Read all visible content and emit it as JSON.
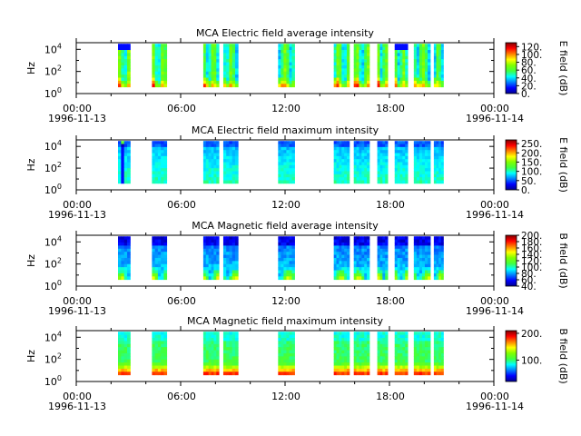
{
  "chart_data": [
    {
      "type": "heatmap",
      "title": "MCA  Electric field average intensity",
      "ylabel": "Hz",
      "yticks": [
        {
          "base": "10",
          "exp": "0"
        },
        {
          "base": "10",
          "exp": "2"
        },
        {
          "base": "10",
          "exp": "4"
        }
      ],
      "ylim_log10": [
        0,
        4.6
      ],
      "colorbar": {
        "label": "E field (dB)",
        "range": [
          0,
          130
        ],
        "ticks": [
          "0.",
          "20.",
          "40.",
          "60.",
          "80.",
          "100.",
          "120."
        ],
        "tick_values": [
          0,
          20,
          40,
          60,
          80,
          100,
          120
        ]
      },
      "style": "eavg"
    },
    {
      "type": "heatmap",
      "title": "MCA  Electric field maximum intensity",
      "ylabel": "Hz",
      "yticks": [
        {
          "base": "10",
          "exp": "0"
        },
        {
          "base": "10",
          "exp": "2"
        },
        {
          "base": "10",
          "exp": "4"
        }
      ],
      "ylim_log10": [
        0,
        4.6
      ],
      "colorbar": {
        "label": "E field (dB)",
        "range": [
          0,
          270
        ],
        "ticks": [
          "0.",
          "50.",
          "100.",
          "150.",
          "200.",
          "250."
        ],
        "tick_values": [
          0,
          50,
          100,
          150,
          200,
          250
        ]
      },
      "style": "emax"
    },
    {
      "type": "heatmap",
      "title": "MCA  Magnetic field average intensity",
      "ylabel": "Hz",
      "yticks": [
        {
          "base": "10",
          "exp": "0"
        },
        {
          "base": "10",
          "exp": "2"
        },
        {
          "base": "10",
          "exp": "4"
        }
      ],
      "ylim_log10": [
        0,
        4.6
      ],
      "colorbar": {
        "label": "B field (dB)",
        "range": [
          40,
          200
        ],
        "ticks": [
          "40.",
          "60.",
          "80.",
          "100.",
          "120.",
          "140.",
          "160.",
          "180.",
          "200."
        ],
        "tick_values": [
          40,
          60,
          80,
          100,
          120,
          140,
          160,
          180,
          200
        ]
      },
      "style": "bavg"
    },
    {
      "type": "heatmap",
      "title": "MCA  Magnetic field maximum intensity",
      "ylabel": "Hz",
      "yticks": [
        {
          "base": "10",
          "exp": "0"
        },
        {
          "base": "10",
          "exp": "2"
        },
        {
          "base": "10",
          "exp": "4"
        }
      ],
      "ylim_log10": [
        0,
        4.6
      ],
      "colorbar": {
        "label": "B field (dB)",
        "range": [
          20,
          210
        ],
        "ticks": [
          "100.",
          "200."
        ],
        "tick_values": [
          100,
          200
        ]
      },
      "style": "bmax"
    }
  ],
  "x_axis": {
    "range_hours": [
      0,
      24
    ],
    "ticks": [
      {
        "hour": 0,
        "label": "00:00",
        "date": "1996-11-13"
      },
      {
        "hour": 6,
        "label": "06:00",
        "date": ""
      },
      {
        "hour": 12,
        "label": "12:00",
        "date": ""
      },
      {
        "hour": 18,
        "label": "18:00",
        "date": ""
      },
      {
        "hour": 24,
        "label": "00:00",
        "date": "1996-11-14"
      }
    ]
  },
  "data_segments_hours": [
    [
      2.4,
      3.1
    ],
    [
      4.35,
      5.2
    ],
    [
      7.3,
      8.2
    ],
    [
      8.45,
      9.3
    ],
    [
      11.6,
      12.55
    ],
    [
      14.8,
      15.7
    ],
    [
      15.95,
      16.85
    ],
    [
      17.3,
      17.9
    ],
    [
      18.3,
      19.05
    ],
    [
      19.4,
      20.35
    ],
    [
      20.55,
      21.1
    ]
  ],
  "colors": {
    "colormap": [
      "#00008f",
      "#0000ff",
      "#0080ff",
      "#00ffff",
      "#40ff40",
      "#80ff00",
      "#ffff00",
      "#ff8000",
      "#ff0000",
      "#800000"
    ],
    "axis": "#000000",
    "background": "#ffffff"
  }
}
